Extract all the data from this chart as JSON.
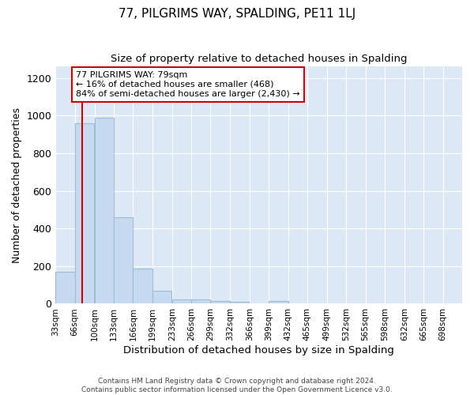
{
  "title": "77, PILGRIMS WAY, SPALDING, PE11 1LJ",
  "subtitle": "Size of property relative to detached houses in Spalding",
  "xlabel": "Distribution of detached houses by size in Spalding",
  "ylabel": "Number of detached properties",
  "bar_color": "#c5d9f0",
  "bar_edgecolor": "#a0bdd8",
  "background_color": "#ffffff",
  "plot_bg_color": "#dce8f5",
  "bin_edges": [
    33,
    66,
    100,
    133,
    166,
    199,
    233,
    266,
    299,
    332,
    366,
    399,
    432,
    465,
    499,
    532,
    565,
    598,
    632,
    665,
    698,
    731
  ],
  "bar_heights": [
    170,
    960,
    990,
    460,
    185,
    70,
    25,
    25,
    15,
    10,
    0,
    15,
    0,
    0,
    0,
    0,
    0,
    0,
    0,
    0,
    0
  ],
  "property_size": 79,
  "red_line_color": "#cc0000",
  "annotation_line1": "77 PILGRIMS WAY: 79sqm",
  "annotation_line2": "← 16% of detached houses are smaller (468)",
  "annotation_line3": "84% of semi-detached houses are larger (2,430) →",
  "annotation_box_color": "#ffffff",
  "annotation_border_color": "#cc0000",
  "ylim": [
    0,
    1260
  ],
  "yticks": [
    0,
    200,
    400,
    600,
    800,
    1000,
    1200
  ],
  "tick_labels": [
    "33sqm",
    "66sqm",
    "100sqm",
    "133sqm",
    "166sqm",
    "199sqm",
    "233sqm",
    "266sqm",
    "299sqm",
    "332sqm",
    "366sqm",
    "399sqm",
    "432sqm",
    "465sqm",
    "499sqm",
    "532sqm",
    "565sqm",
    "598sqm",
    "632sqm",
    "665sqm",
    "698sqm"
  ],
  "footer_line1": "Contains HM Land Registry data © Crown copyright and database right 2024.",
  "footer_line2": "Contains public sector information licensed under the Open Government Licence v3.0."
}
